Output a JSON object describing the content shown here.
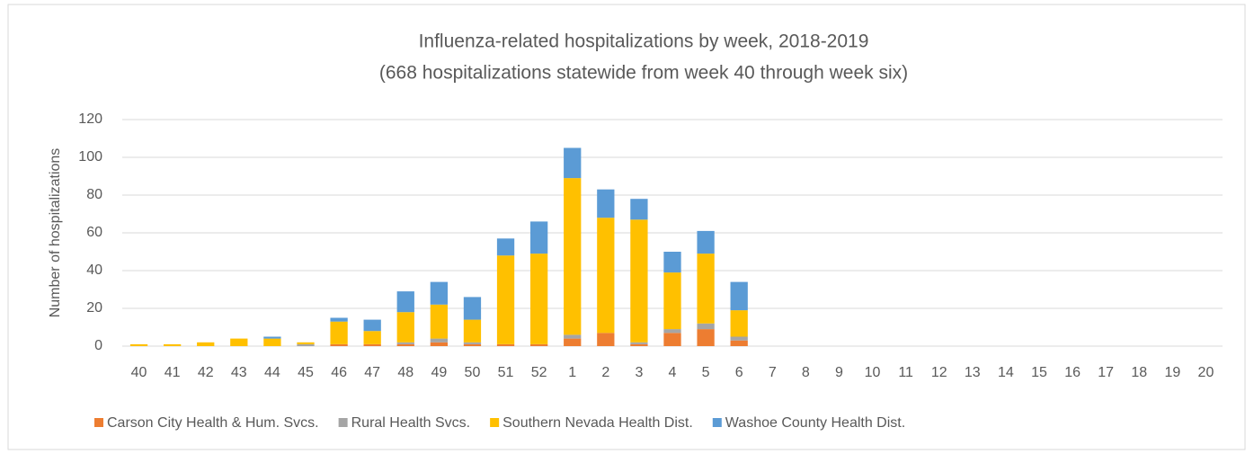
{
  "chart_data": {
    "type": "stacked_bar",
    "title": "Influenza-related hospitalizations by week, 2018-2019",
    "subtitle": "(668 hospitalizations statewide from week 40 through week six)",
    "y_label": "Number of hospitalizations",
    "categories": [
      "40",
      "41",
      "42",
      "43",
      "44",
      "45",
      "46",
      "47",
      "48",
      "49",
      "50",
      "51",
      "52",
      "1",
      "2",
      "3",
      "4",
      "5",
      "6",
      "7",
      "8",
      "9",
      "10",
      "11",
      "12",
      "13",
      "14",
      "15",
      "16",
      "17",
      "18",
      "19",
      "20"
    ],
    "series": [
      {
        "name": "Carson City Health & Hum. Svcs.",
        "color": "#ED7D31",
        "values": [
          0,
          0,
          0,
          0,
          0,
          0,
          1,
          1,
          1,
          2,
          1,
          1,
          1,
          4,
          7,
          1,
          7,
          9,
          3,
          0,
          0,
          0,
          0,
          0,
          0,
          0,
          0,
          0,
          0,
          0,
          0,
          0,
          0
        ]
      },
      {
        "name": "Rural Health Svcs.",
        "color": "#A5A5A5",
        "values": [
          0,
          0,
          0,
          0,
          0,
          1,
          0,
          0,
          1,
          2,
          1,
          0,
          0,
          2,
          0,
          1,
          2,
          3,
          2,
          0,
          0,
          0,
          0,
          0,
          0,
          0,
          0,
          0,
          0,
          0,
          0,
          0,
          0
        ]
      },
      {
        "name": "Southern Nevada Health Dist.",
        "color": "#FFC000",
        "values": [
          1,
          1,
          2,
          4,
          4,
          1,
          12,
          7,
          16,
          18,
          12,
          47,
          48,
          83,
          61,
          65,
          30,
          37,
          14,
          0,
          0,
          0,
          0,
          0,
          0,
          0,
          0,
          0,
          0,
          0,
          0,
          0,
          0
        ]
      },
      {
        "name": "Washoe County Health Dist.",
        "color": "#5B9BD5",
        "values": [
          0,
          0,
          0,
          0,
          1,
          0,
          2,
          6,
          11,
          12,
          12,
          9,
          17,
          16,
          15,
          11,
          11,
          12,
          15,
          0,
          0,
          0,
          0,
          0,
          0,
          0,
          0,
          0,
          0,
          0,
          0,
          0,
          0
        ]
      }
    ],
    "ylim": [
      0,
      120
    ],
    "yticks": [
      0,
      20,
      40,
      60,
      80,
      100,
      120
    ],
    "grid": true,
    "legend": "bottom"
  }
}
